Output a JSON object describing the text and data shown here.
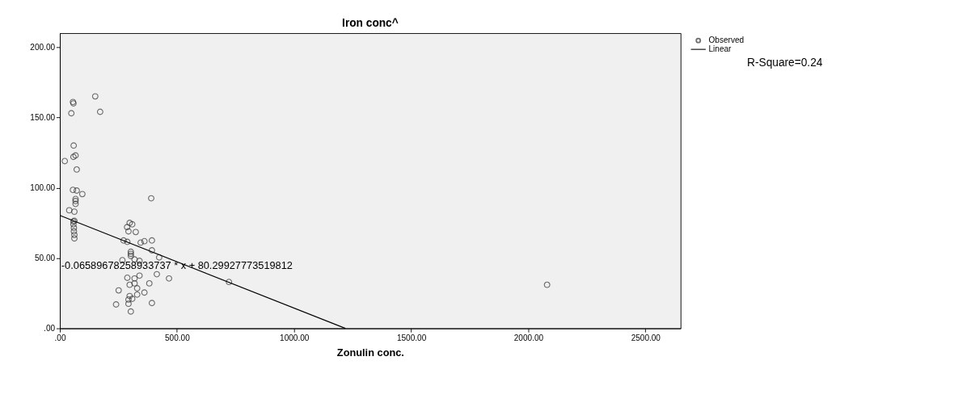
{
  "chart_data": {
    "type": "scatter",
    "title": "Iron conc^",
    "xlabel": "Zonulin conc.",
    "xlim": [
      0,
      2650
    ],
    "ylim": [
      0,
      210
    ],
    "xticks": [
      {
        "value": 0,
        "label": ".00"
      },
      {
        "value": 500,
        "label": "500.00"
      },
      {
        "value": 1000,
        "label": "1000.00"
      },
      {
        "value": 1500,
        "label": "1500.00"
      },
      {
        "value": 2000,
        "label": "2000.00"
      },
      {
        "value": 2500,
        "label": "2500.00"
      }
    ],
    "yticks": [
      {
        "value": 0,
        "label": ".00"
      },
      {
        "value": 50,
        "label": "50.00"
      },
      {
        "value": 100,
        "label": "100.00"
      },
      {
        "value": 150,
        "label": "150.00"
      },
      {
        "value": 200,
        "label": "200.00"
      }
    ],
    "grid": false,
    "legend": "top right",
    "series": [
      {
        "name": "Observed",
        "marker": "circle",
        "color": "#333333",
        "x": [
          151,
          56,
          58,
          49,
          172,
          59,
          67,
          58,
          21,
          72,
          56,
          72,
          96,
          67,
          67,
          67,
          390,
          40,
          62,
          62,
          58,
          58,
          60,
          60,
          62,
          62,
          298,
          287,
          309,
          293,
          324,
          272,
          288,
          345,
          361,
          393,
          393,
          424,
          303,
          303,
          303,
          267,
          319,
          340,
          414,
          466,
          288,
          319,
          340,
          298,
          319,
          382,
          330,
          251,
          361,
          298,
          330,
          293,
          309,
          240,
          293,
          393,
          303,
          722,
          2080
        ],
        "values": [
          165,
          161,
          160,
          153,
          154,
          130,
          123,
          122,
          119,
          113,
          98.5,
          98,
          95.5,
          92,
          90.5,
          88.5,
          92.5,
          84,
          83,
          76.5,
          76,
          74,
          71.5,
          69,
          66.5,
          64,
          75,
          72,
          74,
          69,
          68.5,
          62.5,
          61.5,
          61,
          62,
          62.5,
          55.5,
          50.5,
          54.5,
          53,
          51.5,
          48.5,
          49,
          48,
          38.5,
          35.5,
          36,
          35.5,
          37.5,
          31,
          32,
          32,
          28.5,
          27,
          25.5,
          23,
          24,
          20.5,
          21,
          17,
          17.5,
          18,
          12,
          33,
          31
        ]
      },
      {
        "name": "Linear",
        "type": "line",
        "color": "#000000",
        "line_style": "solid",
        "x": [
          0,
          1219
        ],
        "values": [
          80.3,
          0
        ]
      }
    ],
    "annotations": [
      "-0.06589678258933737 * x + 80.29927773519812",
      "R-Square=0.24"
    ]
  }
}
